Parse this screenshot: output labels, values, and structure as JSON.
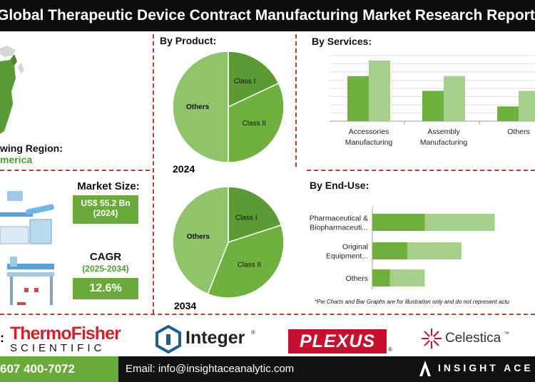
{
  "header": {
    "title": "Global Therapeutic Device Contract Manufacturing Market Research Report"
  },
  "region": {
    "label": "wing Region:",
    "value": "merica"
  },
  "market_size": {
    "heading": "Market Size:",
    "value": "US$ 55.2 Bn",
    "year": "(2024)"
  },
  "cagr": {
    "heading": "CAGR",
    "period": "(2025-2034)",
    "value": "12.6%"
  },
  "product": {
    "heading": "By Product:"
  },
  "services": {
    "heading": "By Services:"
  },
  "enduse": {
    "heading": "By End-Use:"
  },
  "disclaimer": "*Pie Charts and Bar Graphs are for illustration only and do not represent actu",
  "logos": {
    "colon": ":",
    "thermo_line1": "ThermoFisher",
    "thermo_line2": "SCIENTIFIC",
    "integer": "Integer",
    "integer_mark": "®",
    "plexus": "PLEXUS",
    "plexus_mark": "®",
    "celestica": "Celestica",
    "celestica_mark": "™"
  },
  "footer": {
    "phone": "607 400-7072",
    "email": "Email: info@insightaceanalytic.com",
    "brand": "INSIGHT ACE A"
  },
  "colors": {
    "dark_green": "#5c9a36",
    "mid_green": "#6fb03e",
    "light_green": "#8fc46a",
    "pale_green": "#a8d08d",
    "accent_red": "#c0392b"
  },
  "chart_data": [
    {
      "type": "pie",
      "title": "2024",
      "labels": [
        "Class I",
        "Class II",
        "Others"
      ],
      "values": [
        18,
        32,
        50
      ]
    },
    {
      "type": "pie",
      "title": "2034",
      "labels": [
        "Class I",
        "Class II",
        "Others"
      ],
      "values": [
        20,
        36,
        44
      ]
    },
    {
      "type": "bar",
      "categories": [
        "Accessories Manufacturing",
        "Assembly Manufacturing",
        "Others"
      ],
      "category_lines": [
        [
          "Accessories",
          "Manufacturing"
        ],
        [
          "Assembly",
          "Manufacturing"
        ],
        [
          "Others"
        ]
      ],
      "series": [
        {
          "values": [
            55,
            37,
            18
          ]
        },
        {
          "values": [
            74,
            55,
            37
          ]
        }
      ],
      "ylim": [
        0,
        80
      ],
      "grid": true
    },
    {
      "type": "bar",
      "orientation": "horizontal",
      "stacked": true,
      "categories": [
        "Pharmaceutical & Biopharmaceuti...",
        "Original Equipment...",
        "Others"
      ],
      "category_lines": [
        [
          "Pharmaceutical &",
          "Biopharmaceuti..."
        ],
        [
          "Original",
          "Equipment..."
        ],
        [
          "Others"
        ]
      ],
      "series": [
        {
          "values": [
            30,
            20,
            10
          ]
        },
        {
          "values": [
            40,
            31,
            20
          ]
        }
      ]
    }
  ]
}
